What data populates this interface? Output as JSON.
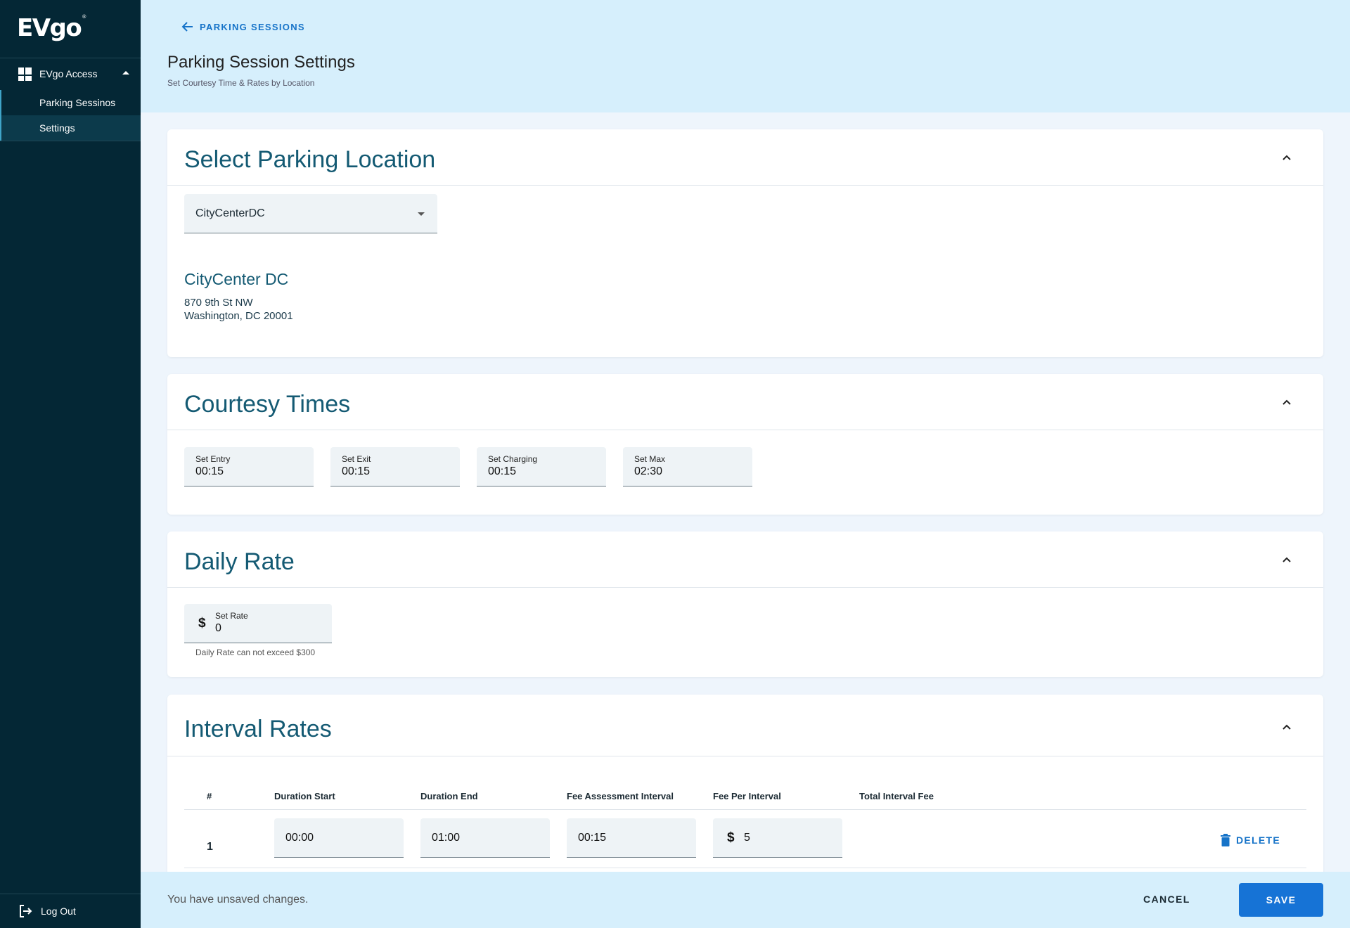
{
  "sidebar": {
    "logo": "EVgo",
    "group_label": "EVgo Access",
    "items": [
      {
        "label": "Parking Sessinos"
      },
      {
        "label": "Settings"
      }
    ],
    "logout_label": "Log Out"
  },
  "header": {
    "back_label": "PARKING SESSIONS",
    "title": "Parking Session Settings",
    "subtitle": "Set Courtesy Time & Rates by Location"
  },
  "location_card": {
    "title": "Select Parking Location",
    "selected": "CityCenterDC",
    "name": "CityCenter DC",
    "address_line1": "870 9th St NW",
    "address_line2": "Washington, DC 20001"
  },
  "courtesy_card": {
    "title": "Courtesy Times",
    "fields": [
      {
        "label": "Set Entry",
        "value": "00:15"
      },
      {
        "label": "Set Exit",
        "value": "00:15"
      },
      {
        "label": "Set Charging",
        "value": "00:15"
      },
      {
        "label": "Set Max",
        "value": "02:30"
      }
    ]
  },
  "daily_card": {
    "title": "Daily Rate",
    "currency": "$",
    "label": "Set Rate",
    "value": "0",
    "hint": "Daily Rate can not exceed $300"
  },
  "interval_card": {
    "title": "Interval Rates",
    "headers": [
      "#",
      "Duration Start",
      "Duration End",
      "Fee Assessment Interval",
      "Fee Per Interval",
      "Total Interval Fee"
    ],
    "rows": [
      {
        "num": "1",
        "start": "00:00",
        "end": "01:00",
        "interval": "00:15",
        "currency": "$",
        "fee": "5"
      }
    ],
    "delete_label": "DELETE"
  },
  "footer": {
    "message": "You have unsaved changes.",
    "cancel_label": "CANCEL",
    "save_label": "SAVE"
  },
  "colors": {
    "sidebar_bg": "#042735",
    "header_bg": "#d6effc",
    "accent": "#1673d6",
    "heading": "#145a73"
  }
}
